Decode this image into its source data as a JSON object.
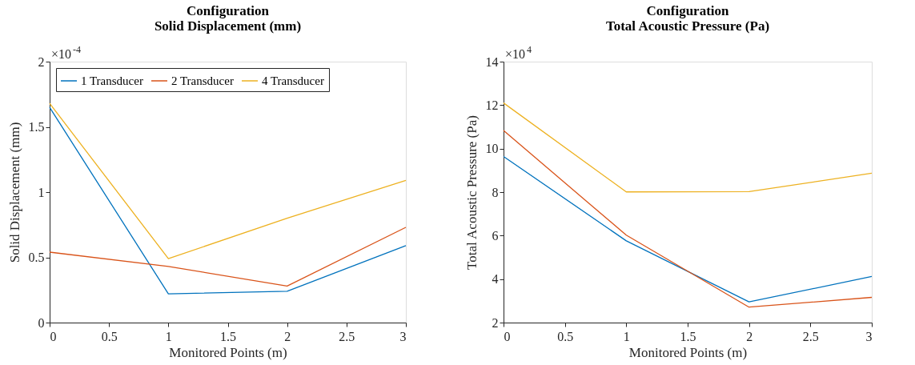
{
  "chart_data": [
    {
      "type": "line",
      "title": "Configuration",
      "subtitle": "Solid Displacement (mm)",
      "xlabel": "Monitored Points (m)",
      "ylabel": "Solid Displacement (mm)",
      "x": [
        0,
        1,
        2,
        3
      ],
      "series": [
        {
          "name": "1 Transducer",
          "color": "#0072bd",
          "values": [
            1.65,
            0.22,
            0.24,
            0.59
          ]
        },
        {
          "name": "2 Transducer",
          "color": "#d95319",
          "values": [
            0.54,
            0.43,
            0.28,
            0.73
          ]
        },
        {
          "name": "4 Transducer",
          "color": "#edb120",
          "values": [
            1.68,
            0.49,
            0.8,
            1.09
          ]
        }
      ],
      "xlim": [
        0,
        3
      ],
      "xticks": [
        0,
        0.5,
        1,
        1.5,
        2,
        2.5,
        3
      ],
      "ylim": [
        0,
        2
      ],
      "yticks": [
        0,
        0.5,
        1,
        1.5,
        2
      ],
      "annotations": [
        "×10$^{-4}$"
      ],
      "legend": "top",
      "grid": false,
      "marker": "none",
      "line_style": "solid"
    },
    {
      "type": "line",
      "title": "Configuration",
      "subtitle": "Total Acoustic Pressure (Pa)",
      "xlabel": "Monitored Points (m)",
      "ylabel": "Total Acoustic Pressure (Pa)",
      "x": [
        0,
        1,
        2,
        3
      ],
      "series": [
        {
          "name": "1 Transducer",
          "color": "#0072bd",
          "values": [
            9.64,
            5.76,
            2.95,
            4.12
          ]
        },
        {
          "name": "2 Transducer",
          "color": "#d95319",
          "values": [
            10.83,
            6.02,
            2.71,
            3.16
          ]
        },
        {
          "name": "4 Transducer",
          "color": "#edb120",
          "values": [
            12.1,
            8.01,
            8.02,
            8.87
          ]
        }
      ],
      "xlim": [
        0,
        3
      ],
      "xticks": [
        0,
        0.5,
        1,
        1.5,
        2,
        2.5,
        3
      ],
      "ylim": [
        2,
        14
      ],
      "yticks": [
        2,
        4,
        6,
        8,
        10,
        12,
        14
      ],
      "annotations": [
        "×10$^{4}$"
      ],
      "legend": "top",
      "grid": false,
      "marker": "none",
      "line_style": "solid"
    }
  ]
}
